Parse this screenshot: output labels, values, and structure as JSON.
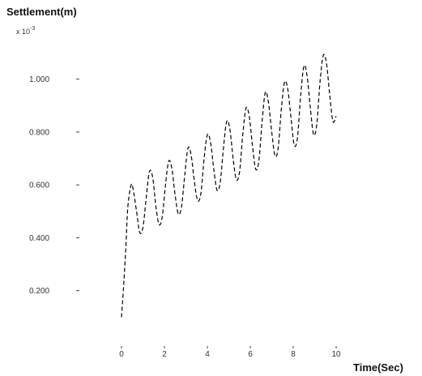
{
  "chart_data": {
    "type": "line",
    "ylabel": "Settlement(m)",
    "y_scale_label": "x 10^-3",
    "y_scale_text": "x 10",
    "y_scale_exp": "-3",
    "xlabel": "Time(Sec)",
    "xlim": [
      0,
      10
    ],
    "ylim": [
      0.0,
      1.1
    ],
    "grid": false,
    "line_color": "#000000",
    "line_style": "dashed",
    "y_ticks": [
      {
        "value": 0.2,
        "label": "0.200"
      },
      {
        "value": 0.4,
        "label": "0.400"
      },
      {
        "value": 0.6,
        "label": "0.600"
      },
      {
        "value": 0.8,
        "label": "0.800"
      },
      {
        "value": 1.0,
        "label": "1.000"
      }
    ],
    "x_ticks": [
      {
        "value": 0,
        "label": "0"
      },
      {
        "value": 2,
        "label": "2"
      },
      {
        "value": 4,
        "label": "4"
      },
      {
        "value": 6,
        "label": "6"
      },
      {
        "value": 8,
        "label": "8"
      },
      {
        "value": 10,
        "label": "10"
      }
    ],
    "series": [
      {
        "x": [
          0.0,
          0.1,
          0.2,
          0.3,
          0.45,
          0.55,
          0.7,
          0.85,
          1.0,
          1.15,
          1.3,
          1.45,
          1.6,
          1.75,
          1.9,
          2.05,
          2.2,
          2.35,
          2.5,
          2.65,
          2.8,
          2.95,
          3.1,
          3.25,
          3.4,
          3.55,
          3.7,
          3.85,
          4.0,
          4.15,
          4.3,
          4.45,
          4.6,
          4.75,
          4.9,
          5.05,
          5.2,
          5.35,
          5.5,
          5.65,
          5.8,
          5.95,
          6.1,
          6.25,
          6.4,
          6.55,
          6.7,
          6.85,
          7.0,
          7.15,
          7.3,
          7.45,
          7.6,
          7.75,
          7.9,
          8.05,
          8.2,
          8.35,
          8.5,
          8.65,
          8.8,
          8.95,
          9.1,
          9.25,
          9.4,
          9.55,
          9.7,
          9.85,
          10.0
        ],
        "y": [
          0.1,
          0.22,
          0.36,
          0.52,
          0.6,
          0.58,
          0.5,
          0.42,
          0.44,
          0.55,
          0.65,
          0.63,
          0.52,
          0.45,
          0.48,
          0.6,
          0.69,
          0.66,
          0.56,
          0.49,
          0.52,
          0.64,
          0.74,
          0.71,
          0.61,
          0.54,
          0.57,
          0.7,
          0.79,
          0.76,
          0.66,
          0.58,
          0.61,
          0.74,
          0.84,
          0.81,
          0.7,
          0.62,
          0.65,
          0.79,
          0.89,
          0.86,
          0.75,
          0.66,
          0.69,
          0.84,
          0.95,
          0.91,
          0.8,
          0.71,
          0.74,
          0.89,
          0.99,
          0.96,
          0.85,
          0.75,
          0.78,
          0.94,
          1.05,
          1.01,
          0.89,
          0.79,
          0.83,
          0.99,
          1.09,
          1.06,
          0.94,
          0.84,
          0.86
        ]
      }
    ]
  }
}
